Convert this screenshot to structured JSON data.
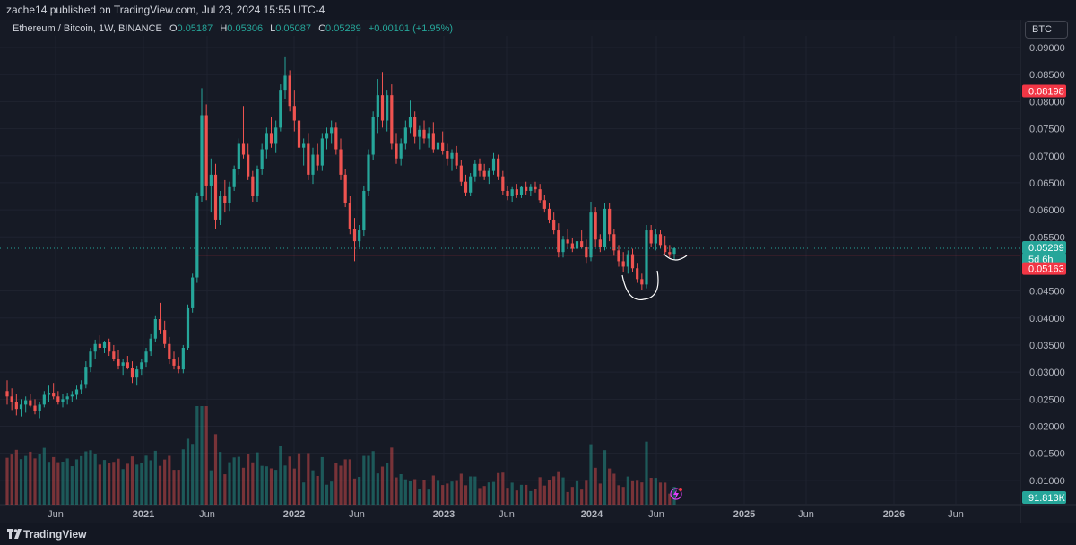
{
  "header": {
    "publisher": "zache14 published on TradingView.com, Jul 23, 2024 15:55 UTC-4"
  },
  "legend": {
    "symbol": "Ethereum / Bitcoin, 1W, BINANCE",
    "o_label": "O",
    "o_value": "0.05187",
    "h_label": "H",
    "h_value": "0.05306",
    "l_label": "L",
    "l_value": "0.05087",
    "c_label": "C",
    "c_value": "0.05289",
    "change": "+0.00101 (+1.95%)"
  },
  "currency_button": "BTC",
  "footer": {
    "brand": "TradingView"
  },
  "colors": {
    "up": "#26a69a",
    "down": "#ef5350",
    "level": "#f23645",
    "bg": "#161a25",
    "text": "#d1d4dc"
  },
  "chart_data": {
    "type": "candlestick",
    "interval": "1W",
    "ylim": [
      0.0055,
      0.0915
    ],
    "y_ticks": [
      "0.09000",
      "0.08500",
      "0.08000",
      "0.07500",
      "0.07000",
      "0.06500",
      "0.06000",
      "0.05500",
      "0.05000",
      "0.04500",
      "0.04000",
      "0.03500",
      "0.03000",
      "0.02500",
      "0.02000",
      "0.01500",
      "0.01000"
    ],
    "x_ticks": [
      "Jun",
      "2021",
      "Jun",
      "2022",
      "Jun",
      "2023",
      "Jun",
      "2024",
      "Jun",
      "2025",
      "Jun",
      "2026",
      "Jun"
    ],
    "price_labels": {
      "last": "0.05289",
      "countdown": "5d 6h",
      "upper_level": "0.08198",
      "lower_level": "0.05163",
      "volume": "91.813K"
    },
    "horizontal_levels": [
      0.08198,
      0.05163
    ],
    "grid": true,
    "candles": [
      [
        0.0265,
        0.0285,
        0.024,
        0.0255
      ],
      [
        0.0255,
        0.027,
        0.023,
        0.0245
      ],
      [
        0.0245,
        0.026,
        0.022,
        0.0232
      ],
      [
        0.0232,
        0.025,
        0.0218,
        0.024
      ],
      [
        0.024,
        0.0255,
        0.0225,
        0.0248
      ],
      [
        0.0248,
        0.026,
        0.0235,
        0.0238
      ],
      [
        0.0238,
        0.025,
        0.0222,
        0.0228
      ],
      [
        0.0228,
        0.0245,
        0.0215,
        0.024
      ],
      [
        0.024,
        0.0265,
        0.0235,
        0.0258
      ],
      [
        0.0258,
        0.0275,
        0.0245,
        0.0262
      ],
      [
        0.0262,
        0.028,
        0.025,
        0.0255
      ],
      [
        0.0255,
        0.0265,
        0.024,
        0.0245
      ],
      [
        0.0245,
        0.026,
        0.0235,
        0.025
      ],
      [
        0.025,
        0.0262,
        0.024,
        0.0255
      ],
      [
        0.0255,
        0.0265,
        0.0245,
        0.0258
      ],
      [
        0.0258,
        0.0275,
        0.025,
        0.0268
      ],
      [
        0.0268,
        0.0285,
        0.026,
        0.0278
      ],
      [
        0.0278,
        0.032,
        0.027,
        0.031
      ],
      [
        0.031,
        0.0345,
        0.03,
        0.0338
      ],
      [
        0.0338,
        0.036,
        0.0325,
        0.0352
      ],
      [
        0.0352,
        0.0368,
        0.034,
        0.0345
      ],
      [
        0.0345,
        0.0358,
        0.0335,
        0.0355
      ],
      [
        0.0355,
        0.0362,
        0.033,
        0.0338
      ],
      [
        0.0338,
        0.035,
        0.032,
        0.0325
      ],
      [
        0.0325,
        0.034,
        0.0305,
        0.0312
      ],
      [
        0.0312,
        0.0325,
        0.0295,
        0.0318
      ],
      [
        0.0318,
        0.033,
        0.0305,
        0.0308
      ],
      [
        0.0308,
        0.032,
        0.028,
        0.029
      ],
      [
        0.029,
        0.0312,
        0.0275,
        0.0305
      ],
      [
        0.0305,
        0.0325,
        0.0295,
        0.0318
      ],
      [
        0.0318,
        0.0345,
        0.031,
        0.0338
      ],
      [
        0.0338,
        0.037,
        0.033,
        0.0362
      ],
      [
        0.0362,
        0.0405,
        0.0355,
        0.0398
      ],
      [
        0.0398,
        0.0428,
        0.037,
        0.0378
      ],
      [
        0.0378,
        0.0395,
        0.0345,
        0.0352
      ],
      [
        0.0352,
        0.0365,
        0.0315,
        0.0325
      ],
      [
        0.0325,
        0.0338,
        0.0305,
        0.0312
      ],
      [
        0.0312,
        0.0328,
        0.0298,
        0.0305
      ],
      [
        0.0305,
        0.035,
        0.0298,
        0.0345
      ],
      [
        0.0345,
        0.0425,
        0.034,
        0.0418
      ],
      [
        0.0418,
        0.0482,
        0.041,
        0.0475
      ],
      [
        0.0475,
        0.0632,
        0.0465,
        0.0625
      ],
      [
        0.0625,
        0.0825,
        0.0615,
        0.0775
      ],
      [
        0.0775,
        0.0795,
        0.0618,
        0.0645
      ],
      [
        0.0645,
        0.0695,
        0.0595,
        0.0665
      ],
      [
        0.0665,
        0.0685,
        0.0565,
        0.0582
      ],
      [
        0.0582,
        0.0635,
        0.0572,
        0.0625
      ],
      [
        0.0625,
        0.0655,
        0.0595,
        0.0612
      ],
      [
        0.0612,
        0.0652,
        0.0598,
        0.0642
      ],
      [
        0.0642,
        0.0682,
        0.0635,
        0.0675
      ],
      [
        0.0675,
        0.0732,
        0.0665,
        0.0722
      ],
      [
        0.0722,
        0.0792,
        0.0695,
        0.0702
      ],
      [
        0.0702,
        0.0722,
        0.0655,
        0.0662
      ],
      [
        0.0662,
        0.0672,
        0.0615,
        0.0625
      ],
      [
        0.0625,
        0.0682,
        0.0615,
        0.0675
      ],
      [
        0.0675,
        0.0722,
        0.0665,
        0.0712
      ],
      [
        0.0712,
        0.0752,
        0.0695,
        0.0742
      ],
      [
        0.0742,
        0.0772,
        0.0715,
        0.0722
      ],
      [
        0.0722,
        0.0765,
        0.0705,
        0.0752
      ],
      [
        0.0752,
        0.0832,
        0.0745,
        0.0822
      ],
      [
        0.0822,
        0.0882,
        0.0805,
        0.0848
      ],
      [
        0.0848,
        0.0858,
        0.0782,
        0.0792
      ],
      [
        0.0792,
        0.0822,
        0.0745,
        0.0765
      ],
      [
        0.0765,
        0.0782,
        0.0705,
        0.0715
      ],
      [
        0.0715,
        0.0732,
        0.0682,
        0.0722
      ],
      [
        0.0722,
        0.0742,
        0.0655,
        0.0665
      ],
      [
        0.0665,
        0.0715,
        0.0648,
        0.0702
      ],
      [
        0.0702,
        0.0722,
        0.0672,
        0.0682
      ],
      [
        0.0682,
        0.0742,
        0.0672,
        0.0732
      ],
      [
        0.0732,
        0.0752,
        0.0712,
        0.0742
      ],
      [
        0.0742,
        0.0765,
        0.0722,
        0.0752
      ],
      [
        0.0752,
        0.0762,
        0.0702,
        0.0712
      ],
      [
        0.0712,
        0.0732,
        0.0655,
        0.0665
      ],
      [
        0.0665,
        0.0675,
        0.0605,
        0.0612
      ],
      [
        0.0612,
        0.0625,
        0.0555,
        0.0565
      ],
      [
        0.0565,
        0.0585,
        0.0505,
        0.0542
      ],
      [
        0.0542,
        0.0572,
        0.0532,
        0.0562
      ],
      [
        0.0562,
        0.0645,
        0.0552,
        0.0635
      ],
      [
        0.0635,
        0.0712,
        0.0625,
        0.0702
      ],
      [
        0.0702,
        0.0782,
        0.0692,
        0.0772
      ],
      [
        0.0772,
        0.0842,
        0.0742,
        0.0812
      ],
      [
        0.0812,
        0.0855,
        0.0752,
        0.0765
      ],
      [
        0.0765,
        0.0822,
        0.0745,
        0.0812
      ],
      [
        0.0812,
        0.0832,
        0.0712,
        0.0722
      ],
      [
        0.0722,
        0.0742,
        0.0685,
        0.0695
      ],
      [
        0.0695,
        0.0732,
        0.0682,
        0.0722
      ],
      [
        0.0722,
        0.0765,
        0.0712,
        0.0752
      ],
      [
        0.0752,
        0.0802,
        0.0742,
        0.0772
      ],
      [
        0.0772,
        0.0782,
        0.0722,
        0.0735
      ],
      [
        0.0735,
        0.0755,
        0.0712,
        0.0748
      ],
      [
        0.0748,
        0.0765,
        0.0722,
        0.0732
      ],
      [
        0.0732,
        0.0752,
        0.0715,
        0.0742
      ],
      [
        0.0742,
        0.0762,
        0.0705,
        0.0712
      ],
      [
        0.0712,
        0.0732,
        0.0692,
        0.0725
      ],
      [
        0.0725,
        0.0745,
        0.0702,
        0.0708
      ],
      [
        0.0708,
        0.0722,
        0.0682,
        0.0695
      ],
      [
        0.0695,
        0.0712,
        0.0672,
        0.0705
      ],
      [
        0.0705,
        0.0718,
        0.0675,
        0.0682
      ],
      [
        0.0682,
        0.0692,
        0.0645,
        0.0652
      ],
      [
        0.0652,
        0.0665,
        0.0625,
        0.0632
      ],
      [
        0.0632,
        0.0668,
        0.0625,
        0.0662
      ],
      [
        0.0662,
        0.0692,
        0.0652,
        0.0685
      ],
      [
        0.0685,
        0.0695,
        0.0662,
        0.0672
      ],
      [
        0.0672,
        0.0685,
        0.0655,
        0.0662
      ],
      [
        0.0662,
        0.0678,
        0.0648,
        0.0672
      ],
      [
        0.0672,
        0.0705,
        0.0665,
        0.0695
      ],
      [
        0.0695,
        0.0702,
        0.0655,
        0.0662
      ],
      [
        0.0662,
        0.0672,
        0.0628,
        0.0635
      ],
      [
        0.0635,
        0.0645,
        0.0618,
        0.0625
      ],
      [
        0.0625,
        0.0642,
        0.0615,
        0.0638
      ],
      [
        0.0638,
        0.0648,
        0.0622,
        0.0628
      ],
      [
        0.0628,
        0.0645,
        0.0622,
        0.0642
      ],
      [
        0.0642,
        0.0652,
        0.0628,
        0.0635
      ],
      [
        0.0635,
        0.0648,
        0.0625,
        0.0642
      ],
      [
        0.0642,
        0.0652,
        0.0632,
        0.0638
      ],
      [
        0.0638,
        0.0648,
        0.0612,
        0.0618
      ],
      [
        0.0618,
        0.0628,
        0.0595,
        0.0602
      ],
      [
        0.0602,
        0.0612,
        0.0575,
        0.0582
      ],
      [
        0.0582,
        0.0595,
        0.0555,
        0.0562
      ],
      [
        0.0562,
        0.0575,
        0.0512,
        0.0522
      ],
      [
        0.0522,
        0.0552,
        0.0512,
        0.0545
      ],
      [
        0.0545,
        0.0565,
        0.0532,
        0.0538
      ],
      [
        0.0538,
        0.0548,
        0.0522,
        0.0528
      ],
      [
        0.0528,
        0.0552,
        0.0518,
        0.0542
      ],
      [
        0.0542,
        0.0562,
        0.0528,
        0.0532
      ],
      [
        0.0532,
        0.0545,
        0.0502,
        0.0512
      ],
      [
        0.0512,
        0.0615,
        0.0505,
        0.0595
      ],
      [
        0.0595,
        0.0605,
        0.0532,
        0.0545
      ],
      [
        0.0545,
        0.0555,
        0.0522,
        0.0532
      ],
      [
        0.0532,
        0.0612,
        0.0525,
        0.0602
      ],
      [
        0.0602,
        0.0612,
        0.0542,
        0.0555
      ],
      [
        0.0555,
        0.0565,
        0.0515,
        0.0525
      ],
      [
        0.0525,
        0.0535,
        0.0495,
        0.0505
      ],
      [
        0.0505,
        0.0522,
        0.0485,
        0.0495
      ],
      [
        0.0495,
        0.0525,
        0.0482,
        0.0518
      ],
      [
        0.0518,
        0.0528,
        0.0485,
        0.0492
      ],
      [
        0.0492,
        0.0502,
        0.0465,
        0.0472
      ],
      [
        0.0472,
        0.0482,
        0.0452,
        0.0462
      ],
      [
        0.0462,
        0.0572,
        0.0455,
        0.0562
      ],
      [
        0.0562,
        0.0572,
        0.0532,
        0.0538
      ],
      [
        0.0538,
        0.0565,
        0.0525,
        0.0555
      ],
      [
        0.0555,
        0.0562,
        0.0528,
        0.0535
      ],
      [
        0.0535,
        0.0552,
        0.0518,
        0.0522
      ],
      [
        0.0522,
        0.0535,
        0.0512,
        0.0518
      ],
      [
        0.05187,
        0.05306,
        0.05087,
        0.05289
      ]
    ],
    "volume_ticks_shown": false
  }
}
